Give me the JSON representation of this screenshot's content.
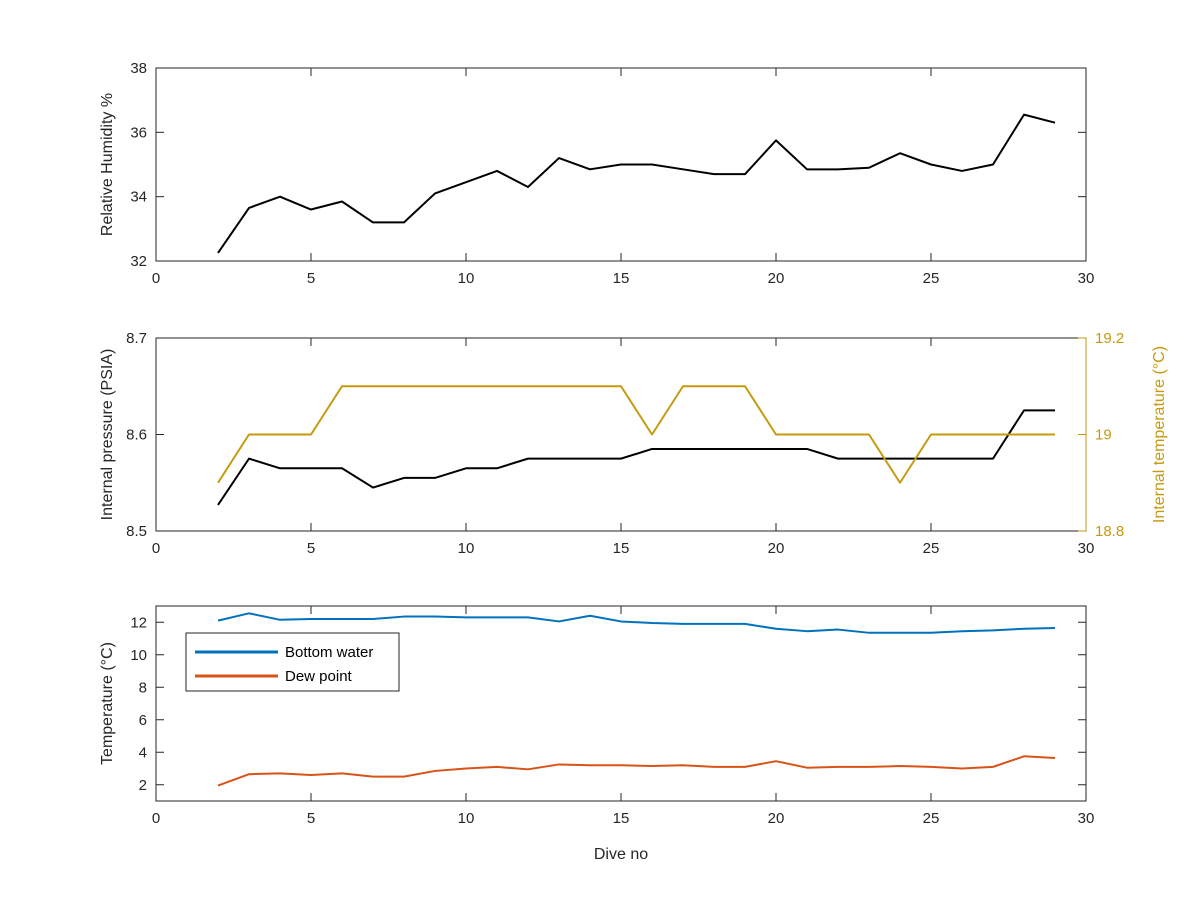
{
  "colors": {
    "black": "#000000",
    "gold": "#C59A0F",
    "blue": "#0072BD",
    "orange": "#D95319",
    "axis": "#262626"
  },
  "chart_data": [
    {
      "type": "line",
      "xlabel": "",
      "ylabel": "Relative Humidity %",
      "xlim": [
        0,
        30
      ],
      "ylim": [
        32,
        38
      ],
      "xticks": [
        0,
        5,
        10,
        15,
        20,
        25,
        30
      ],
      "yticks": [
        32,
        34,
        36,
        38
      ],
      "x": [
        2,
        3,
        4,
        5,
        6,
        7,
        8,
        9,
        10,
        11,
        12,
        13,
        14,
        15,
        16,
        17,
        18,
        19,
        20,
        21,
        22,
        23,
        24,
        25,
        26,
        27,
        28,
        29
      ],
      "series": [
        {
          "color": "#000000",
          "values": [
            32.25,
            33.65,
            34.0,
            33.6,
            33.85,
            33.2,
            33.2,
            34.1,
            34.45,
            34.8,
            34.3,
            35.2,
            34.85,
            35.0,
            35.0,
            34.85,
            34.7,
            34.7,
            35.75,
            34.85,
            34.85,
            34.9,
            35.35,
            35.0,
            34.8,
            35.0,
            36.55,
            36.3
          ]
        }
      ]
    },
    {
      "type": "line",
      "xlabel": "",
      "ylabel": "Internal pressure (PSIA)",
      "y2label": "Internal temperature (°C)",
      "xlim": [
        0,
        30
      ],
      "ylim": [
        8.5,
        8.7
      ],
      "y2lim": [
        18.8,
        19.2
      ],
      "xticks": [
        0,
        5,
        10,
        15,
        20,
        25,
        30
      ],
      "yticks": [
        8.5,
        8.6,
        8.7
      ],
      "y2ticks": [
        18.8,
        19,
        19.2
      ],
      "x": [
        2,
        3,
        4,
        5,
        6,
        7,
        8,
        9,
        10,
        11,
        12,
        13,
        14,
        15,
        16,
        17,
        18,
        19,
        20,
        21,
        22,
        23,
        24,
        25,
        26,
        27,
        28,
        29
      ],
      "series": [
        {
          "axis": "left",
          "color": "#000000",
          "values": [
            8.527,
            8.575,
            8.565,
            8.565,
            8.565,
            8.545,
            8.555,
            8.555,
            8.565,
            8.565,
            8.575,
            8.575,
            8.575,
            8.575,
            8.585,
            8.585,
            8.585,
            8.585,
            8.585,
            8.585,
            8.575,
            8.575,
            8.575,
            8.575,
            8.575,
            8.575,
            8.625,
            8.625
          ]
        },
        {
          "axis": "right",
          "color": "#C59A0F",
          "values": [
            18.9,
            19.0,
            19.0,
            19.0,
            19.1,
            19.1,
            19.1,
            19.1,
            19.1,
            19.1,
            19.1,
            19.1,
            19.1,
            19.1,
            19.0,
            19.1,
            19.1,
            19.1,
            19.0,
            19.0,
            19.0,
            19.0,
            18.9,
            19.0,
            19.0,
            19.0,
            19.0,
            19.0
          ]
        }
      ]
    },
    {
      "type": "line",
      "xlabel": "Dive no",
      "ylabel": "Temperature (°C)",
      "xlim": [
        0,
        30
      ],
      "ylim": [
        1,
        13
      ],
      "xticks": [
        0,
        5,
        10,
        15,
        20,
        25,
        30
      ],
      "yticks": [
        2,
        4,
        6,
        8,
        10,
        12
      ],
      "legend": "top-left",
      "x": [
        2,
        3,
        4,
        5,
        6,
        7,
        8,
        9,
        10,
        11,
        12,
        13,
        14,
        15,
        16,
        17,
        18,
        19,
        20,
        21,
        22,
        23,
        24,
        25,
        26,
        27,
        28,
        29
      ],
      "series": [
        {
          "name": "Bottom water",
          "color": "#0072BD",
          "values": [
            12.1,
            12.55,
            12.15,
            12.2,
            12.2,
            12.2,
            12.35,
            12.35,
            12.3,
            12.3,
            12.3,
            12.05,
            12.4,
            12.05,
            11.95,
            11.9,
            11.9,
            11.9,
            11.6,
            11.45,
            11.55,
            11.35,
            11.35,
            11.35,
            11.45,
            11.5,
            11.6,
            11.65
          ]
        },
        {
          "name": "Dew point",
          "color": "#D95319",
          "values": [
            1.95,
            2.65,
            2.7,
            2.6,
            2.7,
            2.5,
            2.5,
            2.85,
            3.0,
            3.1,
            2.95,
            3.25,
            3.2,
            3.2,
            3.15,
            3.2,
            3.1,
            3.1,
            3.45,
            3.05,
            3.1,
            3.1,
            3.15,
            3.1,
            3.0,
            3.1,
            3.75,
            3.65
          ]
        }
      ]
    }
  ]
}
